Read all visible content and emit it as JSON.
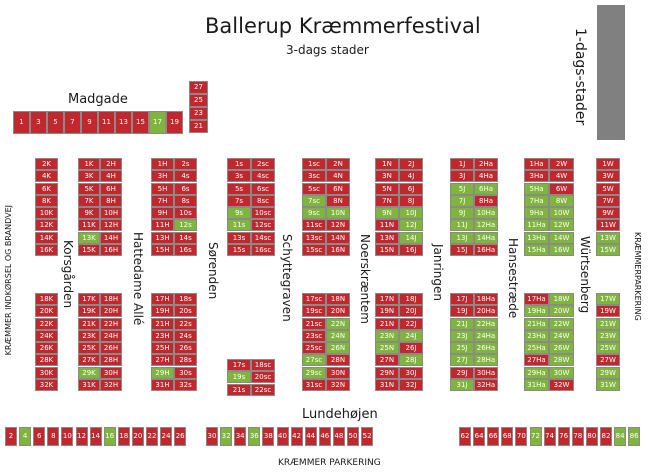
{
  "title": "Ballerup Kræmmerfestival",
  "subtitle": "3-dags stader",
  "one_day_label": "1-dags-stader",
  "streets": {
    "madgade": "Madgade",
    "lundehojen": "Lundehøjen",
    "korsgarden": "Korsgården",
    "hattedame": "Hattedame Allé",
    "sorenden": "Sørenden",
    "schyttegraven": "Schyttegraven",
    "noerskraenten": "Noerskræntem",
    "janringen": "Janringen",
    "hansestraede": "Hansestræde",
    "wurtsenberg": "Würtsenberg"
  },
  "edge_labels": {
    "left": "KRÆMMER INDKØRSEL OG BRANDVEJ",
    "right": "KRÆMMERPARKERING",
    "bottom": "KRÆMMER PARKERING"
  },
  "colors": {
    "occupied": "#c1272d",
    "available": "#7fb53c",
    "one_day_bar": "#808080"
  },
  "madgade_row": [
    {
      "t": "1",
      "s": "r"
    },
    {
      "t": "3",
      "s": "r"
    },
    {
      "t": "5",
      "s": "r"
    },
    {
      "t": "7",
      "s": "r"
    },
    {
      "t": "9",
      "s": "r"
    },
    {
      "t": "11",
      "s": "r"
    },
    {
      "t": "13",
      "s": "r"
    },
    {
      "t": "15",
      "s": "r"
    },
    {
      "t": "17",
      "s": "g"
    },
    {
      "t": "19",
      "s": "r"
    }
  ],
  "madgade_stack": [
    {
      "t": "27",
      "s": "r"
    },
    {
      "t": "25",
      "s": "r"
    },
    {
      "t": "23",
      "s": "r"
    },
    {
      "t": "21",
      "s": "r"
    }
  ],
  "bottom_left": [
    {
      "t": "2",
      "s": "r"
    },
    {
      "t": "4",
      "s": "g"
    },
    {
      "t": "6",
      "s": "r"
    },
    {
      "t": "8",
      "s": "r"
    },
    {
      "t": "10",
      "s": "r"
    },
    {
      "t": "12",
      "s": "r"
    },
    {
      "t": "14",
      "s": "r"
    },
    {
      "t": "16",
      "s": "g"
    },
    {
      "t": "18",
      "s": "r"
    },
    {
      "t": "20",
      "s": "r"
    },
    {
      "t": "22",
      "s": "r"
    },
    {
      "t": "24",
      "s": "r"
    },
    {
      "t": "26",
      "s": "r"
    }
  ],
  "bottom_mid": [
    {
      "t": "30",
      "s": "r"
    },
    {
      "t": "32",
      "s": "g"
    },
    {
      "t": "34",
      "s": "r"
    },
    {
      "t": "36",
      "s": "g"
    },
    {
      "t": "38",
      "s": "r"
    },
    {
      "t": "40",
      "s": "r"
    },
    {
      "t": "42",
      "s": "r"
    },
    {
      "t": "44",
      "s": "r"
    },
    {
      "t": "46",
      "s": "r"
    },
    {
      "t": "48",
      "s": "r"
    },
    {
      "t": "50",
      "s": "r"
    },
    {
      "t": "52",
      "s": "r"
    }
  ],
  "bottom_right": [
    {
      "t": "62",
      "s": "r"
    },
    {
      "t": "64",
      "s": "r"
    },
    {
      "t": "66",
      "s": "r"
    },
    {
      "t": "68",
      "s": "r"
    },
    {
      "t": "70",
      "s": "r"
    },
    {
      "t": "72",
      "s": "g"
    },
    {
      "t": "74",
      "s": "r"
    },
    {
      "t": "76",
      "s": "r"
    },
    {
      "t": "78",
      "s": "r"
    },
    {
      "t": "80",
      "s": "r"
    },
    {
      "t": "82",
      "s": "r"
    },
    {
      "t": "84",
      "s": "g"
    },
    {
      "t": "86",
      "s": "g"
    }
  ],
  "col_a_top": [
    {
      "t": "2K",
      "s": "r"
    },
    {
      "t": "4K",
      "s": "r"
    },
    {
      "t": "6K",
      "s": "r"
    },
    {
      "t": "8K",
      "s": "r"
    },
    {
      "t": "10K",
      "s": "r"
    },
    {
      "t": "12K",
      "s": "r"
    },
    {
      "t": "14K",
      "s": "r"
    },
    {
      "t": "16K",
      "s": "r"
    }
  ],
  "col_a_bottom": [
    {
      "t": "18K",
      "s": "r"
    },
    {
      "t": "20K",
      "s": "r"
    },
    {
      "t": "22K",
      "s": "r"
    },
    {
      "t": "24K",
      "s": "r"
    },
    {
      "t": "26K",
      "s": "r"
    },
    {
      "t": "28K",
      "s": "r"
    },
    {
      "t": "30K",
      "s": "r"
    },
    {
      "t": "32K",
      "s": "r"
    }
  ],
  "col_h_top": [
    [
      {
        "t": "1K",
        "s": "r"
      },
      {
        "t": "2H",
        "s": "r"
      }
    ],
    [
      {
        "t": "3K",
        "s": "r"
      },
      {
        "t": "4H",
        "s": "r"
      }
    ],
    [
      {
        "t": "5K",
        "s": "r"
      },
      {
        "t": "6H",
        "s": "r"
      }
    ],
    [
      {
        "t": "7K",
        "s": "r"
      },
      {
        "t": "8H",
        "s": "r"
      }
    ],
    [
      {
        "t": "9K",
        "s": "r"
      },
      {
        "t": "10H",
        "s": "r"
      }
    ],
    [
      {
        "t": "11K",
        "s": "r"
      },
      {
        "t": "12H",
        "s": "r"
      }
    ],
    [
      {
        "t": "13K",
        "s": "g"
      },
      {
        "t": "14H",
        "s": "r"
      }
    ],
    [
      {
        "t": "15K",
        "s": "r"
      },
      {
        "t": "16H",
        "s": "r"
      }
    ]
  ],
  "col_h_bottom": [
    [
      {
        "t": "17K",
        "s": "r"
      },
      {
        "t": "18H",
        "s": "r"
      }
    ],
    [
      {
        "t": "19K",
        "s": "r"
      },
      {
        "t": "20H",
        "s": "r"
      }
    ],
    [
      {
        "t": "21K",
        "s": "r"
      },
      {
        "t": "22H",
        "s": "r"
      }
    ],
    [
      {
        "t": "23K",
        "s": "r"
      },
      {
        "t": "24H",
        "s": "r"
      }
    ],
    [
      {
        "t": "25K",
        "s": "r"
      },
      {
        "t": "26H",
        "s": "r"
      }
    ],
    [
      {
        "t": "27K",
        "s": "r"
      },
      {
        "t": "28H",
        "s": "r"
      }
    ],
    [
      {
        "t": "29K",
        "s": "g"
      },
      {
        "t": "30H",
        "s": "r"
      }
    ],
    [
      {
        "t": "31K",
        "s": "r"
      },
      {
        "t": "32H",
        "s": "r"
      }
    ]
  ],
  "col_s_top": [
    [
      {
        "t": "1H",
        "s": "r"
      },
      {
        "t": "2s",
        "s": "r"
      }
    ],
    [
      {
        "t": "3H",
        "s": "r"
      },
      {
        "t": "4s",
        "s": "r"
      }
    ],
    [
      {
        "t": "5H",
        "s": "r"
      },
      {
        "t": "6s",
        "s": "r"
      }
    ],
    [
      {
        "t": "7H",
        "s": "r"
      },
      {
        "t": "8s",
        "s": "r"
      }
    ],
    [
      {
        "t": "9H",
        "s": "r"
      },
      {
        "t": "10s",
        "s": "r"
      }
    ],
    [
      {
        "t": "11H",
        "s": "r"
      },
      {
        "t": "12s",
        "s": "g"
      }
    ],
    [
      {
        "t": "13H",
        "s": "r"
      },
      {
        "t": "14s",
        "s": "r"
      }
    ],
    [
      {
        "t": "15H",
        "s": "r"
      },
      {
        "t": "16s",
        "s": "r"
      }
    ]
  ],
  "col_s_bottom": [
    [
      {
        "t": "17H",
        "s": "r"
      },
      {
        "t": "18s",
        "s": "r"
      }
    ],
    [
      {
        "t": "19H",
        "s": "r"
      },
      {
        "t": "20s",
        "s": "r"
      }
    ],
    [
      {
        "t": "21H",
        "s": "r"
      },
      {
        "t": "22s",
        "s": "r"
      }
    ],
    [
      {
        "t": "23H",
        "s": "r"
      },
      {
        "t": "24s",
        "s": "r"
      }
    ],
    [
      {
        "t": "25H",
        "s": "r"
      },
      {
        "t": "26s",
        "s": "r"
      }
    ],
    [
      {
        "t": "27H",
        "s": "r"
      },
      {
        "t": "28s",
        "s": "r"
      }
    ],
    [
      {
        "t": "29H",
        "s": "g"
      },
      {
        "t": "30s",
        "s": "r"
      }
    ],
    [
      {
        "t": "31H",
        "s": "r"
      },
      {
        "t": "32s",
        "s": "r"
      }
    ]
  ],
  "col_sc_top": [
    [
      {
        "t": "1s",
        "s": "r"
      },
      {
        "t": "2sc",
        "s": "r"
      }
    ],
    [
      {
        "t": "3s",
        "s": "r"
      },
      {
        "t": "4sc",
        "s": "r"
      }
    ],
    [
      {
        "t": "5s",
        "s": "r"
      },
      {
        "t": "6sc",
        "s": "r"
      }
    ],
    [
      {
        "t": "7s",
        "s": "r"
      },
      {
        "t": "8sc",
        "s": "r"
      }
    ],
    [
      {
        "t": "9s",
        "s": "g"
      },
      {
        "t": "10sc",
        "s": "r"
      }
    ],
    [
      {
        "t": "11s",
        "s": "g"
      },
      {
        "t": "12sc",
        "s": "r"
      }
    ],
    [
      {
        "t": "13s",
        "s": "r"
      },
      {
        "t": "14sc",
        "s": "r"
      }
    ],
    [
      {
        "t": "15s",
        "s": "r"
      },
      {
        "t": "16sc",
        "s": "r"
      }
    ]
  ],
  "col_sc_bottom": [
    [
      {
        "t": "17s",
        "s": "r"
      },
      {
        "t": "18sc",
        "s": "r"
      }
    ],
    [
      {
        "t": "19s",
        "s": "g"
      },
      {
        "t": "20sc",
        "s": "r"
      }
    ],
    [
      {
        "t": "21s",
        "s": "r"
      },
      {
        "t": "22sc",
        "s": "r"
      }
    ]
  ],
  "col_n_top": [
    [
      {
        "t": "1sc",
        "s": "r"
      },
      {
        "t": "2N",
        "s": "r"
      }
    ],
    [
      {
        "t": "3sc",
        "s": "r"
      },
      {
        "t": "4N",
        "s": "r"
      }
    ],
    [
      {
        "t": "5sc",
        "s": "r"
      },
      {
        "t": "6N",
        "s": "r"
      }
    ],
    [
      {
        "t": "7sc",
        "s": "g"
      },
      {
        "t": "8N",
        "s": "r"
      }
    ],
    [
      {
        "t": "9sc",
        "s": "g"
      },
      {
        "t": "10N",
        "s": "g"
      }
    ],
    [
      {
        "t": "11sc",
        "s": "r"
      },
      {
        "t": "12N",
        "s": "r"
      }
    ],
    [
      {
        "t": "13sc",
        "s": "r"
      },
      {
        "t": "14N",
        "s": "r"
      }
    ],
    [
      {
        "t": "15sc",
        "s": "r"
      },
      {
        "t": "16N",
        "s": "r"
      }
    ]
  ],
  "col_n_bottom": [
    [
      {
        "t": "17sc",
        "s": "r"
      },
      {
        "t": "18N",
        "s": "r"
      }
    ],
    [
      {
        "t": "19sc",
        "s": "r"
      },
      {
        "t": "20N",
        "s": "r"
      }
    ],
    [
      {
        "t": "21sc",
        "s": "r"
      },
      {
        "t": "22N",
        "s": "g"
      }
    ],
    [
      {
        "t": "23sc",
        "s": "r"
      },
      {
        "t": "24N",
        "s": "g"
      }
    ],
    [
      {
        "t": "25sc",
        "s": "r"
      },
      {
        "t": "26N",
        "s": "g"
      }
    ],
    [
      {
        "t": "27sc",
        "s": "g"
      },
      {
        "t": "28N",
        "s": "r"
      }
    ],
    [
      {
        "t": "29sc",
        "s": "g"
      },
      {
        "t": "30N",
        "s": "r"
      }
    ],
    [
      {
        "t": "31sc",
        "s": "r"
      },
      {
        "t": "32N",
        "s": "r"
      }
    ]
  ],
  "col_j_top": [
    [
      {
        "t": "1N",
        "s": "r"
      },
      {
        "t": "2J",
        "s": "r"
      }
    ],
    [
      {
        "t": "3N",
        "s": "r"
      },
      {
        "t": "4J",
        "s": "r"
      }
    ],
    [
      {
        "t": "5N",
        "s": "r"
      },
      {
        "t": "6J",
        "s": "r"
      }
    ],
    [
      {
        "t": "7N",
        "s": "r"
      },
      {
        "t": "8J",
        "s": "r"
      }
    ],
    [
      {
        "t": "9N",
        "s": "g"
      },
      {
        "t": "10J",
        "s": "g"
      }
    ],
    [
      {
        "t": "11N",
        "s": "r"
      },
      {
        "t": "12J",
        "s": "g"
      }
    ],
    [
      {
        "t": "13N",
        "s": "r"
      },
      {
        "t": "14J",
        "s": "g"
      }
    ],
    [
      {
        "t": "15N",
        "s": "r"
      },
      {
        "t": "16J",
        "s": "r"
      }
    ]
  ],
  "col_j_bottom": [
    [
      {
        "t": "17N",
        "s": "r"
      },
      {
        "t": "18J",
        "s": "r"
      }
    ],
    [
      {
        "t": "19N",
        "s": "r"
      },
      {
        "t": "20J",
        "s": "r"
      }
    ],
    [
      {
        "t": "21N",
        "s": "r"
      },
      {
        "t": "22J",
        "s": "r"
      }
    ],
    [
      {
        "t": "23N",
        "s": "g"
      },
      {
        "t": "24J",
        "s": "g"
      }
    ],
    [
      {
        "t": "25N",
        "s": "g"
      },
      {
        "t": "26J",
        "s": "r"
      }
    ],
    [
      {
        "t": "27N",
        "s": "r"
      },
      {
        "t": "28J",
        "s": "g"
      }
    ],
    [
      {
        "t": "29N",
        "s": "r"
      },
      {
        "t": "30J",
        "s": "r"
      }
    ],
    [
      {
        "t": "31N",
        "s": "r"
      },
      {
        "t": "32J",
        "s": "r"
      }
    ]
  ],
  "col_ha_top": [
    [
      {
        "t": "1J",
        "s": "r"
      },
      {
        "t": "2Ha",
        "s": "r"
      }
    ],
    [
      {
        "t": "3J",
        "s": "r"
      },
      {
        "t": "4Ha",
        "s": "r"
      }
    ],
    [
      {
        "t": "5J",
        "s": "g"
      },
      {
        "t": "6Ha",
        "s": "g"
      }
    ],
    [
      {
        "t": "7J",
        "s": "g"
      },
      {
        "t": "8Ha",
        "s": "r"
      }
    ],
    [
      {
        "t": "9J",
        "s": "g"
      },
      {
        "t": "10Ha",
        "s": "g"
      }
    ],
    [
      {
        "t": "11J",
        "s": "g"
      },
      {
        "t": "12Ha",
        "s": "g"
      }
    ],
    [
      {
        "t": "13J",
        "s": "g"
      },
      {
        "t": "14Ha",
        "s": "g"
      }
    ],
    [
      {
        "t": "15J",
        "s": "r"
      },
      {
        "t": "16Ha",
        "s": "r"
      }
    ]
  ],
  "col_ha_bottom": [
    [
      {
        "t": "17J",
        "s": "r"
      },
      {
        "t": "18Ha",
        "s": "r"
      }
    ],
    [
      {
        "t": "19J",
        "s": "r"
      },
      {
        "t": "20Ha",
        "s": "r"
      }
    ],
    [
      {
        "t": "21J",
        "s": "g"
      },
      {
        "t": "22Ha",
        "s": "g"
      }
    ],
    [
      {
        "t": "23J",
        "s": "g"
      },
      {
        "t": "24Ha",
        "s": "g"
      }
    ],
    [
      {
        "t": "25J",
        "s": "g"
      },
      {
        "t": "26Ha",
        "s": "g"
      }
    ],
    [
      {
        "t": "27J",
        "s": "g"
      },
      {
        "t": "28Ha",
        "s": "g"
      }
    ],
    [
      {
        "t": "29J",
        "s": "r"
      },
      {
        "t": "30Ha",
        "s": "r"
      }
    ],
    [
      {
        "t": "31J",
        "s": "g"
      },
      {
        "t": "32Ha",
        "s": "r"
      }
    ]
  ],
  "col_w_top": [
    [
      {
        "t": "1Ha",
        "s": "r"
      },
      {
        "t": "2W",
        "s": "r"
      }
    ],
    [
      {
        "t": "3Ha",
        "s": "r"
      },
      {
        "t": "4W",
        "s": "r"
      }
    ],
    [
      {
        "t": "5Ha",
        "s": "g"
      },
      {
        "t": "6W",
        "s": "r"
      }
    ],
    [
      {
        "t": "7Ha",
        "s": "g"
      },
      {
        "t": "8W",
        "s": "g"
      }
    ],
    [
      {
        "t": "9Ha",
        "s": "g"
      },
      {
        "t": "10W",
        "s": "g"
      }
    ],
    [
      {
        "t": "11Ha",
        "s": "g"
      },
      {
        "t": "12W",
        "s": "g"
      }
    ],
    [
      {
        "t": "13Ha",
        "s": "g"
      },
      {
        "t": "14W",
        "s": "g"
      }
    ],
    [
      {
        "t": "15Ha",
        "s": "g"
      },
      {
        "t": "16W",
        "s": "g"
      }
    ]
  ],
  "col_w_bottom": [
    [
      {
        "t": "17Ha",
        "s": "r"
      },
      {
        "t": "18W",
        "s": "g"
      }
    ],
    [
      {
        "t": "19Ha",
        "s": "g"
      },
      {
        "t": "20W",
        "s": "g"
      }
    ],
    [
      {
        "t": "21Ha",
        "s": "g"
      },
      {
        "t": "22W",
        "s": "g"
      }
    ],
    [
      {
        "t": "23Ha",
        "s": "g"
      },
      {
        "t": "24W",
        "s": "g"
      }
    ],
    [
      {
        "t": "25Ha",
        "s": "g"
      },
      {
        "t": "26W",
        "s": "g"
      }
    ],
    [
      {
        "t": "27Ha",
        "s": "r"
      },
      {
        "t": "28W",
        "s": "g"
      }
    ],
    [
      {
        "t": "29Ha",
        "s": "g"
      },
      {
        "t": "30W",
        "s": "g"
      }
    ],
    [
      {
        "t": "31Ha",
        "s": "g"
      },
      {
        "t": "32W",
        "s": "r"
      }
    ]
  ],
  "col_1w_top": [
    {
      "t": "1W",
      "s": "r"
    },
    {
      "t": "3W",
      "s": "r"
    },
    {
      "t": "5W",
      "s": "r"
    },
    {
      "t": "7W",
      "s": "r"
    },
    {
      "t": "9W",
      "s": "r"
    },
    {
      "t": "11W",
      "s": "r"
    },
    {
      "t": "13W",
      "s": "g"
    },
    {
      "t": "15W",
      "s": "g"
    }
  ],
  "col_1w_bottom": [
    {
      "t": "17W",
      "s": "g"
    },
    {
      "t": "19W",
      "s": "r"
    },
    {
      "t": "21W",
      "s": "g"
    },
    {
      "t": "23W",
      "s": "g"
    },
    {
      "t": "25W",
      "s": "g"
    },
    {
      "t": "27W",
      "s": "r"
    },
    {
      "t": "29W",
      "s": "g"
    },
    {
      "t": "31W",
      "s": "g"
    }
  ]
}
